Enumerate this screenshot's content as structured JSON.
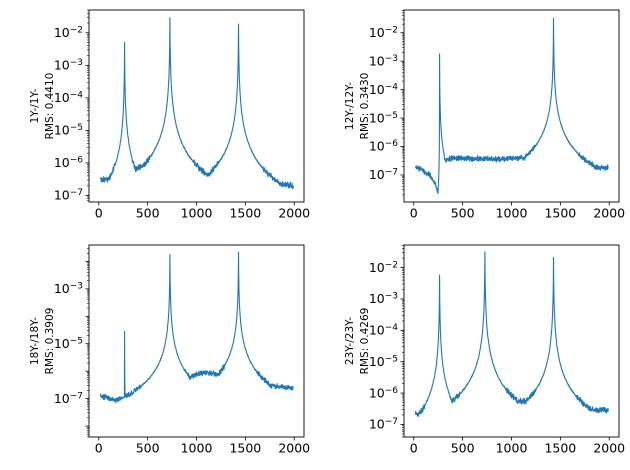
{
  "figure": {
    "background": "#ffffff",
    "grid": "2x2"
  },
  "chart_data": [
    {
      "type": "line",
      "id": "1y",
      "ylabel_lines": [
        "1Y-/1Y-",
        "RMS: 0.4410"
      ],
      "rms_value": "0.4410",
      "line_color": "#1f77b4",
      "xlim": [
        -100,
        2100
      ],
      "xticks": [
        0,
        500,
        1000,
        1500,
        2000
      ],
      "ylog10_lim": [
        -7.2,
        -1.3
      ],
      "ytick_labeled_exponents": [
        -2,
        -3,
        -4,
        -5,
        -6,
        -7
      ],
      "grid_lines": false,
      "legend": null,
      "curve": {
        "x_start": 18,
        "x_end": 1990,
        "step": 2,
        "baseline_anchors": [
          [
            18,
            -6.5
          ],
          [
            120,
            -6.5
          ],
          [
            300,
            -6.3
          ],
          [
            430,
            -6.1
          ],
          [
            560,
            -6.25
          ],
          [
            1000,
            -6.4
          ],
          [
            1150,
            -6.35
          ],
          [
            1500,
            -6.45
          ],
          [
            1750,
            -6.6
          ],
          [
            1990,
            -6.7
          ]
        ],
        "peaks": [
          {
            "x": 264,
            "h": -2.3,
            "gl": 1.3,
            "gr": 1.3
          },
          {
            "x": 728,
            "h": -1.55,
            "gl": 1.5,
            "gr": 1.5
          },
          {
            "x": 1430,
            "h": -1.72,
            "gl": 1.5,
            "gr": 1.5
          }
        ],
        "noise_base": 0.11,
        "noise_peak": 0.03,
        "seed": 101
      }
    },
    {
      "type": "line",
      "id": "12y",
      "ylabel_lines": [
        "12Y-/12Y-",
        "RMS: 0.3430"
      ],
      "rms_value": "0.3430",
      "line_color": "#1f77b4",
      "xlim": [
        -100,
        2100
      ],
      "xticks": [
        0,
        500,
        1000,
        1500,
        2000
      ],
      "ylog10_lim": [
        -7.95,
        -1.2
      ],
      "ytick_labeled_exponents": [
        -2,
        -3,
        -4,
        -5,
        -6,
        -7
      ],
      "grid_lines": false,
      "legend": null,
      "curve": {
        "x_start": 18,
        "x_end": 1990,
        "step": 2,
        "baseline_anchors": [
          [
            18,
            -6.7
          ],
          [
            90,
            -6.85
          ],
          [
            160,
            -7.0
          ],
          [
            215,
            -7.3
          ],
          [
            248,
            -7.62
          ],
          [
            262,
            -7.2
          ],
          [
            310,
            -6.5
          ],
          [
            400,
            -6.4
          ],
          [
            900,
            -6.45
          ],
          [
            1150,
            -6.38
          ],
          [
            1800,
            -6.7
          ],
          [
            1990,
            -6.75
          ]
        ],
        "peaks": [
          {
            "x": 264,
            "h": -2.75,
            "gl": 0.06,
            "gr": 0.8
          },
          {
            "x": 1430,
            "h": -1.52,
            "gl": 1.1,
            "gr": 1.1
          }
        ],
        "noise_base": 0.11,
        "noise_peak": 0.03,
        "seed": 202
      }
    },
    {
      "type": "line",
      "id": "18y",
      "ylabel_lines": [
        "18Y-/18Y-",
        "RMS: 0.3909"
      ],
      "rms_value": "0.3909",
      "line_color": "#1f77b4",
      "xlim": [
        -100,
        2100
      ],
      "xticks": [
        0,
        500,
        1000,
        1500,
        2000
      ],
      "ylog10_lim": [
        -8.4,
        -1.4
      ],
      "ytick_labeled_exponents": [
        -3,
        -5,
        -7
      ],
      "grid_lines": false,
      "legend": null,
      "curve": {
        "x_start": 18,
        "x_end": 1990,
        "step": 2,
        "baseline_anchors": [
          [
            18,
            -6.9
          ],
          [
            110,
            -7.0
          ],
          [
            190,
            -7.1
          ],
          [
            235,
            -7.4
          ],
          [
            250,
            -7.93
          ],
          [
            258,
            -7.6
          ],
          [
            300,
            -6.95
          ],
          [
            420,
            -6.95
          ],
          [
            700,
            -6.8
          ],
          [
            1000,
            -6.1
          ],
          [
            1120,
            -6.05
          ],
          [
            1350,
            -6.2
          ],
          [
            1700,
            -6.5
          ],
          [
            1990,
            -6.62
          ]
        ],
        "peaks": [
          {
            "x": 264,
            "h": -4.55,
            "gl": 0.06,
            "gr": 0.35
          },
          {
            "x": 728,
            "h": -1.76,
            "gl": 1.2,
            "gr": 1.2
          },
          {
            "x": 1430,
            "h": -1.63,
            "gl": 1.2,
            "gr": 1.2
          }
        ],
        "noise_base": 0.11,
        "noise_peak": 0.03,
        "seed": 303
      }
    },
    {
      "type": "line",
      "id": "23y",
      "ylabel_lines": [
        "23Y-/23Y-",
        "RMS: 0.4269"
      ],
      "rms_value": "0.4269",
      "line_color": "#1f77b4",
      "xlim": [
        -100,
        2100
      ],
      "xticks": [
        0,
        500,
        1000,
        1500,
        2000
      ],
      "ylog10_lim": [
        -7.4,
        -1.28
      ],
      "ytick_labeled_exponents": [
        -2,
        -3,
        -4,
        -5,
        -6,
        -7
      ],
      "grid_lines": false,
      "legend": null,
      "curve": {
        "x_start": 18,
        "x_end": 1990,
        "step": 2,
        "baseline_anchors": [
          [
            18,
            -6.6
          ],
          [
            60,
            -6.8
          ],
          [
            110,
            -6.8
          ],
          [
            200,
            -6.55
          ],
          [
            420,
            -6.45
          ],
          [
            650,
            -6.4
          ],
          [
            1080,
            -6.25
          ],
          [
            1250,
            -6.3
          ],
          [
            1650,
            -6.5
          ],
          [
            1990,
            -6.55
          ]
        ],
        "peaks": [
          {
            "x": 264,
            "h": -2.25,
            "gl": 1.3,
            "gr": 1.3
          },
          {
            "x": 728,
            "h": -1.5,
            "gl": 1.4,
            "gr": 1.4
          },
          {
            "x": 1430,
            "h": -1.66,
            "gl": 1.4,
            "gr": 1.4
          }
        ],
        "noise_base": 0.11,
        "noise_peak": 0.03,
        "seed": 404
      }
    }
  ]
}
